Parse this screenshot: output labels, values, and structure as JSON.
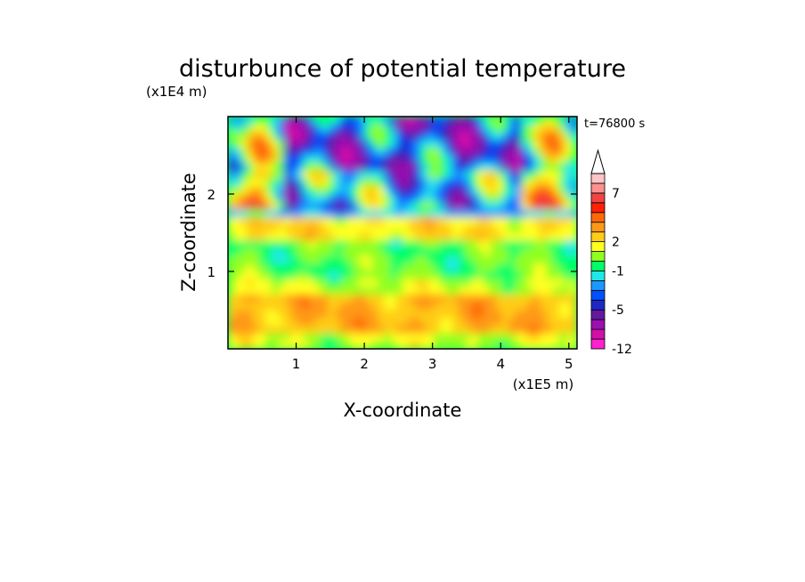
{
  "chart_data": {
    "type": "heatmap",
    "title": "disturbunce of potential temperature",
    "xlabel": "X-coordinate",
    "ylabel": "Z-coordinate",
    "x_scale_label": "(x1E5 m)",
    "y_scale_label": "(x1E4 m)",
    "time_label": "t=76800 s",
    "xlim": [
      0,
      5.12
    ],
    "ylim": [
      0,
      3.0
    ],
    "x_ticks": [
      1,
      2,
      3,
      4,
      5
    ],
    "x_tick_labels": [
      "1",
      "2",
      "3",
      "4",
      "5"
    ],
    "y_ticks": [
      1,
      2
    ],
    "y_tick_labels": [
      "1",
      "2"
    ],
    "colorbar": {
      "levels": [
        -12,
        -10,
        -8,
        -6,
        -5,
        -4,
        -3,
        -2,
        -1,
        0,
        1,
        2,
        3,
        4,
        5,
        6,
        7,
        8,
        10
      ],
      "tick_labels": [
        "-12",
        "-5",
        "-1",
        "2",
        "7"
      ],
      "tick_values": [
        -12,
        -5,
        -1,
        2,
        7
      ],
      "colors": [
        "#ff20d0",
        "#d010a8",
        "#9a10b0",
        "#6418a0",
        "#1e28c8",
        "#0050ff",
        "#1a98ff",
        "#20e8e8",
        "#00ff66",
        "#90ff20",
        "#ffff20",
        "#ffcc18",
        "#ff9818",
        "#ff6808",
        "#ff2008",
        "#ee4444",
        "#ff9090",
        "#ffc4c4"
      ],
      "extend": "max"
    },
    "field_description_bands": [
      {
        "z_range": [
          0.0,
          0.25
        ],
        "approx_value": 1
      },
      {
        "z_range": [
          0.25,
          0.65
        ],
        "approx_value": 3
      },
      {
        "z_range": [
          0.65,
          0.95
        ],
        "approx_value": 1
      },
      {
        "z_range": [
          0.95,
          1.35
        ],
        "approx_value": 0
      },
      {
        "z_range": [
          1.35,
          1.75
        ],
        "approx_value": 2
      },
      {
        "z_range": [
          1.75,
          2.3
        ],
        "approx_value": -2
      },
      {
        "z_range": [
          2.3,
          3.0
        ],
        "approx_value": -4
      }
    ]
  }
}
